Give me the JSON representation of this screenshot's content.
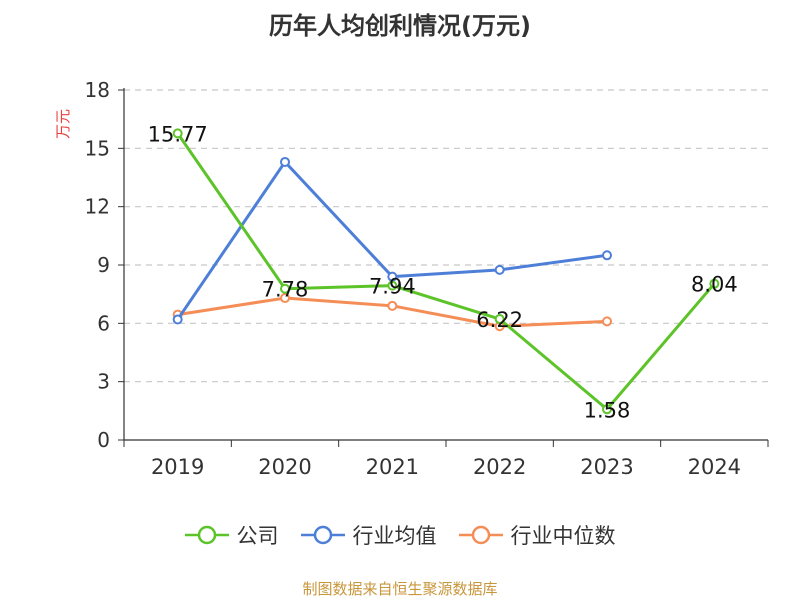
{
  "title": "历年人均创利情况(万元)",
  "source": "制图数据来自恒生聚源数据库",
  "chart_data": {
    "type": "line",
    "title": "历年人均创利情况(万元)",
    "ylabel": "万元",
    "xlabel": "",
    "categories": [
      "2019",
      "2020",
      "2021",
      "2022",
      "2023",
      "2024"
    ],
    "ylim": [
      0,
      18
    ],
    "yticks": [
      0,
      3,
      6,
      9,
      12,
      15,
      18
    ],
    "grid": true,
    "legend_position": "bottom",
    "series": [
      {
        "name": "公司",
        "color": "#5cc329",
        "values": [
          15.77,
          7.78,
          7.94,
          6.22,
          1.58,
          8.04
        ],
        "labels": [
          "15.77",
          "7.78",
          "7.94",
          "6.22",
          "1.58",
          "8.04"
        ]
      },
      {
        "name": "行业均值",
        "color": "#4e7fd8",
        "values": [
          6.2,
          14.3,
          8.4,
          8.75,
          9.5,
          null
        ],
        "labels": []
      },
      {
        "name": "行业中位数",
        "color": "#f58d57",
        "values": [
          6.45,
          7.3,
          6.9,
          5.85,
          6.1,
          null
        ],
        "labels": []
      }
    ]
  }
}
